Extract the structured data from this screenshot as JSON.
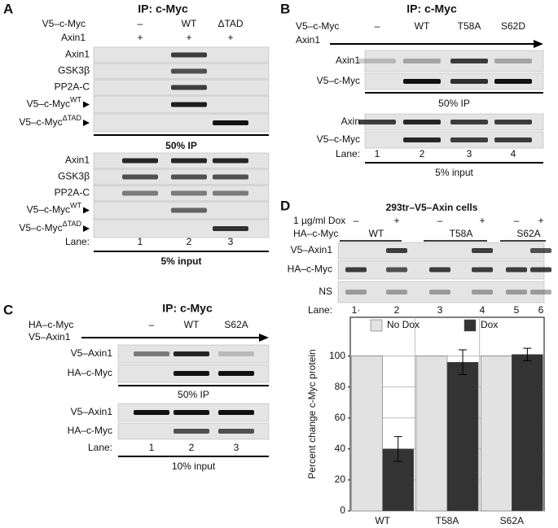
{
  "panels": {
    "A": {
      "letter": "A",
      "title": "IP: c-Myc",
      "header_rows": [
        {
          "label": "V5–c-Myc",
          "cols": [
            "–",
            "WT",
            "ΔTAD"
          ]
        },
        {
          "label": "Axin1",
          "cols": [
            "+",
            "+",
            "+"
          ]
        }
      ],
      "ip_rows": [
        {
          "label": "Axin1"
        },
        {
          "label": "GSK3β"
        },
        {
          "label": "PP2A-C"
        },
        {
          "label": "V5–c-Myc",
          "sup": "WT"
        },
        {
          "label": "V5–c-Myc",
          "sup": "ΔTAD"
        }
      ],
      "ip_caption": "50% IP",
      "input_rows": [
        {
          "label": "Axin1"
        },
        {
          "label": "GSK3β"
        },
        {
          "label": "PP2A-C"
        },
        {
          "label": "V5–c-Myc",
          "sup": "WT"
        },
        {
          "label": "V5–c-Myc",
          "sup": "ΔTAD"
        }
      ],
      "lane_label": "Lane:",
      "lanes": [
        "1",
        "2",
        "3"
      ],
      "input_caption": "5% input"
    },
    "B": {
      "letter": "B",
      "title": "IP: c-Myc",
      "header_rows": [
        {
          "label": "V5–c-Myc",
          "cols": [
            "–",
            "WT",
            "T58A",
            "S62D"
          ]
        },
        {
          "label": "Axin1"
        }
      ],
      "ip_rows": [
        {
          "label": "Axin1"
        },
        {
          "label": "V5–c-Myc"
        }
      ],
      "ip_caption": "50% IP",
      "input_rows": [
        {
          "label": "Axin"
        },
        {
          "label": "V5–c-Myc"
        }
      ],
      "lane_label": "Lane:",
      "lanes": [
        "1",
        "2",
        "3",
        "4"
      ],
      "input_caption": "5% input"
    },
    "C": {
      "letter": "C",
      "title": "IP: c-Myc",
      "header_rows": [
        {
          "label": "HA–c-Myc",
          "cols": [
            "–",
            "WT",
            "S62A"
          ]
        },
        {
          "label": "V5–Axin1"
        }
      ],
      "ip_rows": [
        {
          "label": "V5–Axin1"
        },
        {
          "label": "HA–c-Myc"
        }
      ],
      "ip_caption": "50% IP",
      "input_rows": [
        {
          "label": "V5–Axin1"
        },
        {
          "label": "HA–c-Myc"
        }
      ],
      "lane_label": "Lane:",
      "lanes": [
        "1",
        "2",
        "3"
      ],
      "input_caption": "10% input"
    },
    "D": {
      "letter": "D",
      "title": "293tr–V5–Axin cells",
      "dox_label": "1 µg/ml Dox",
      "dox_cols": [
        "–",
        "+",
        "–",
        "+",
        "–",
        "+"
      ],
      "ha_label": "HA–c-Myc",
      "groups": [
        "WT",
        "T58A",
        "S62A"
      ],
      "rows": [
        {
          "label": "V5–Axin1"
        },
        {
          "label": "HA–c-Myc"
        },
        {
          "label": "NS"
        }
      ],
      "lane_label": "Lane:",
      "lanes": [
        "1·",
        "2",
        "3",
        "4",
        "5",
        "6"
      ]
    }
  },
  "chart_data": {
    "type": "bar",
    "y_label": "Percent change c-Myc protein",
    "categories": [
      "WT",
      "T58A",
      "S62A"
    ],
    "series": [
      {
        "name": "No Dox",
        "color": "#e2e2e2",
        "values": [
          100,
          100,
          100
        ]
      },
      {
        "name": "Dox",
        "color": "#333333",
        "values": [
          40,
          96,
          101
        ],
        "errors": [
          8,
          8,
          4
        ]
      }
    ],
    "ylim": [
      0,
      125
    ],
    "yticks": [
      0,
      20,
      40,
      60,
      80,
      100
    ],
    "grid": true,
    "legend": "top"
  }
}
